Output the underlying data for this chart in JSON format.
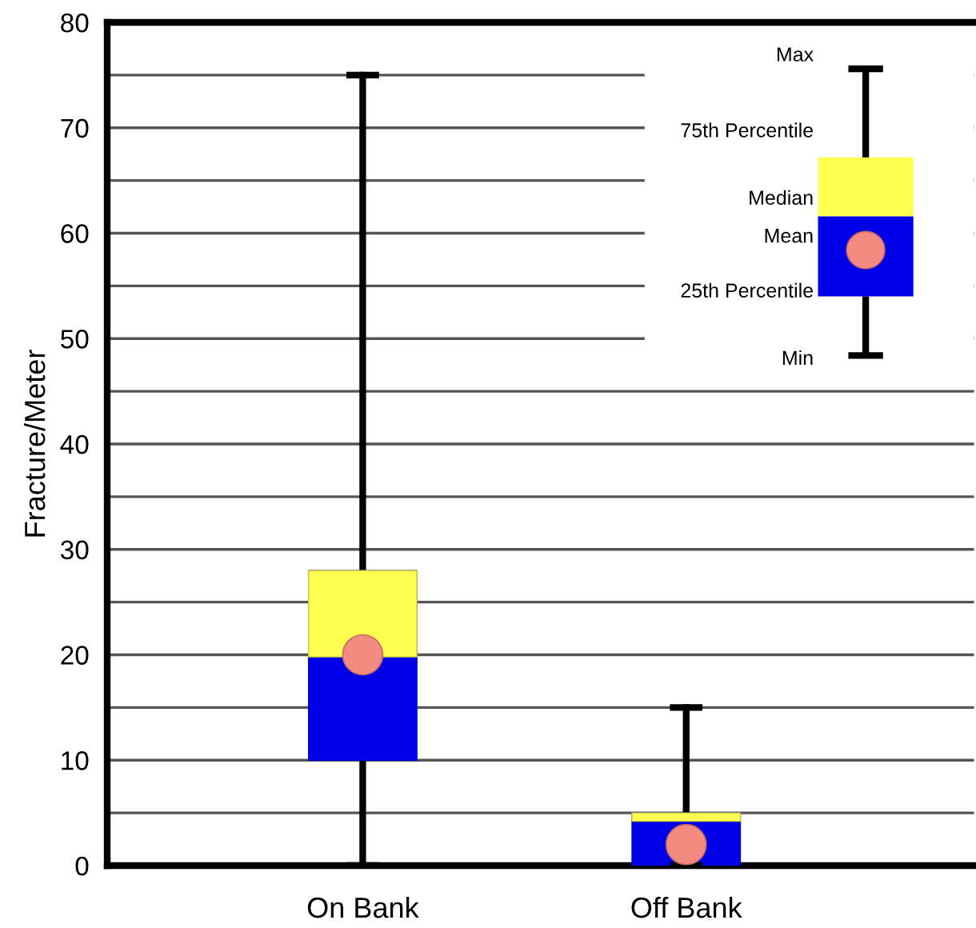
{
  "chart_data": {
    "type": "box",
    "ylabel": "Fracture/Meter",
    "categories": [
      "On Bank",
      "Off Bank"
    ],
    "series": [
      {
        "color": "#0000e6",
        "boxes": [
          {
            "low": 0,
            "q1": 10,
            "median": 19.8,
            "q3": 28,
            "high": 75,
            "mean": 20
          },
          {
            "low": 0,
            "q1": 0,
            "median": 4.2,
            "q3": 5,
            "high": 15,
            "mean": 2
          }
        ]
      }
    ],
    "ylim": [
      0,
      80
    ],
    "yticks": [
      0,
      {
        "value": 5,
        "label": null
      },
      10,
      {
        "value": 15,
        "label": null
      },
      20,
      {
        "value": 25,
        "label": null
      },
      30,
      {
        "value": 35,
        "label": null
      },
      40,
      {
        "value": 45,
        "label": null
      },
      50,
      {
        "value": 55,
        "label": null
      },
      60,
      {
        "value": 65,
        "label": null
      },
      70,
      {
        "value": 75,
        "label": null
      },
      80
    ],
    "grid": "y",
    "annotations": [
      "Max",
      "75th Percentile",
      "Median",
      "Mean",
      "25th Percentile",
      "Min"
    ]
  }
}
